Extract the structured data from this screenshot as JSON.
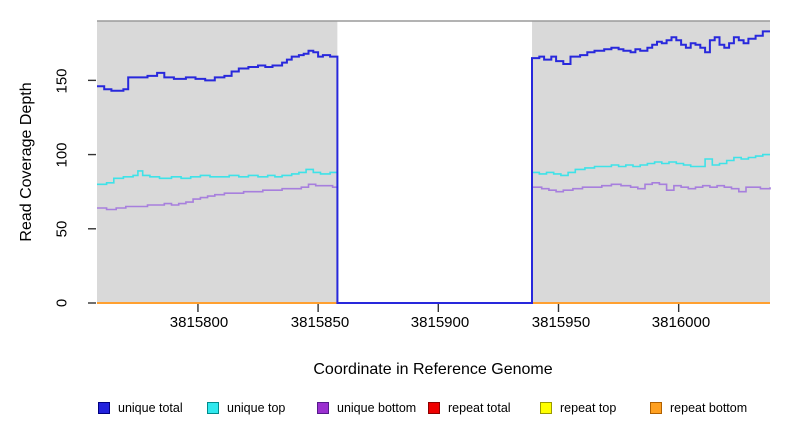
{
  "x_axis": {
    "title": "Coordinate in Reference Genome",
    "tick_labels": [
      "3815800",
      "3815850",
      "3815900",
      "3815950",
      "3816000"
    ]
  },
  "y_axis": {
    "title": "Read Coverage Depth",
    "tick_labels": [
      "0",
      "50",
      "100",
      "150"
    ]
  },
  "legend": {
    "items": [
      {
        "label": "unique total",
        "color": "#2222dd",
        "border": "#000080"
      },
      {
        "label": "unique top",
        "color": "#2fe8ee",
        "border": "#008b8b"
      },
      {
        "label": "unique bottom",
        "color": "#9b30d0",
        "border": "#551a8b"
      },
      {
        "label": "repeat total",
        "color": "#ee0000",
        "border": "#8b0000"
      },
      {
        "label": "repeat top",
        "color": "#ffff00",
        "border": "#9a9a00"
      },
      {
        "label": "repeat bottom",
        "color": "#ffa020",
        "border": "#b06000"
      }
    ]
  },
  "chart_data": {
    "type": "line",
    "style": "step",
    "xlabel": "Coordinate in Reference Genome",
    "ylabel": "Read Coverage Depth",
    "xlim": [
      3815758,
      3816038
    ],
    "ylim": [
      0,
      190
    ],
    "x_ticks": [
      3815800,
      3815850,
      3815900,
      3815950,
      3816000
    ],
    "y_ticks": [
      0,
      50,
      100,
      150
    ],
    "panel_color": "#d9d9d9",
    "panel_top_border": "#9a9a9a",
    "tick_color": "#333333",
    "shaded_regions": [
      [
        3815758,
        3815858
      ],
      [
        3815939,
        3816038
      ]
    ],
    "gap_region": [
      3815858,
      3815939
    ],
    "legend_position": "bottom",
    "grid": false,
    "series": [
      {
        "name": "repeat total",
        "color": "#ee0000",
        "width": 2,
        "points": [
          [
            3815758,
            0
          ],
          [
            3815858,
            0
          ],
          null,
          [
            3815939,
            0
          ],
          [
            3816038,
            0
          ]
        ]
      },
      {
        "name": "repeat top",
        "color": "#ffff00",
        "width": 2,
        "points": [
          [
            3815758,
            0
          ],
          [
            3815858,
            0
          ],
          null,
          [
            3815939,
            0
          ],
          [
            3816038,
            0
          ]
        ]
      },
      {
        "name": "repeat bottom",
        "color": "#ffa030",
        "width": 2,
        "points": [
          [
            3815758,
            0
          ],
          [
            3815858,
            0
          ],
          null,
          [
            3815939,
            0
          ],
          [
            3816038,
            0
          ]
        ]
      },
      {
        "name": "unique top",
        "color": "#3ee2e8",
        "width": 1.6,
        "points": [
          [
            3815758,
            80
          ],
          [
            3815762,
            81
          ],
          [
            3815765,
            84
          ],
          [
            3815769,
            85
          ],
          [
            3815773,
            86
          ],
          [
            3815775,
            89
          ],
          [
            3815777,
            86
          ],
          [
            3815780,
            85
          ],
          [
            3815784,
            84
          ],
          [
            3815789,
            85
          ],
          [
            3815793,
            84
          ],
          [
            3815797,
            85
          ],
          [
            3815801,
            86
          ],
          [
            3815805,
            85
          ],
          [
            3815809,
            85
          ],
          [
            3815813,
            86
          ],
          [
            3815817,
            85
          ],
          [
            3815821,
            86
          ],
          [
            3815825,
            85
          ],
          [
            3815829,
            86
          ],
          [
            3815832,
            85
          ],
          [
            3815835,
            86
          ],
          [
            3815839,
            87
          ],
          [
            3815842,
            88
          ],
          [
            3815845,
            90
          ],
          [
            3815848,
            88
          ],
          [
            3815851,
            87
          ],
          [
            3815855,
            88
          ],
          [
            3815858,
            0
          ],
          [
            3815939,
            88
          ],
          [
            3815942,
            87
          ],
          [
            3815945,
            88
          ],
          [
            3815948,
            87
          ],
          [
            3815951,
            86
          ],
          [
            3815954,
            88
          ],
          [
            3815957,
            90
          ],
          [
            3815961,
            91
          ],
          [
            3815965,
            92
          ],
          [
            3815969,
            92
          ],
          [
            3815972,
            93
          ],
          [
            3815975,
            92
          ],
          [
            3815978,
            93
          ],
          [
            3815981,
            92
          ],
          [
            3815984,
            93
          ],
          [
            3815987,
            94
          ],
          [
            3815990,
            95
          ],
          [
            3815993,
            94
          ],
          [
            3815996,
            95
          ],
          [
            3815999,
            94
          ],
          [
            3816002,
            93
          ],
          [
            3816005,
            92
          ],
          [
            3816008,
            92
          ],
          [
            3816011,
            97
          ],
          [
            3816014,
            93
          ],
          [
            3816017,
            94
          ],
          [
            3816020,
            96
          ],
          [
            3816023,
            98
          ],
          [
            3816026,
            97
          ],
          [
            3816029,
            98
          ],
          [
            3816032,
            99
          ],
          [
            3816035,
            100
          ],
          [
            3816038,
            100
          ]
        ]
      },
      {
        "name": "unique bottom",
        "color": "#a77fdd",
        "width": 1.6,
        "points": [
          [
            3815758,
            64
          ],
          [
            3815762,
            63
          ],
          [
            3815766,
            64
          ],
          [
            3815770,
            65
          ],
          [
            3815775,
            65
          ],
          [
            3815779,
            66
          ],
          [
            3815783,
            66
          ],
          [
            3815786,
            67
          ],
          [
            3815789,
            66
          ],
          [
            3815792,
            67
          ],
          [
            3815795,
            68
          ],
          [
            3815798,
            70
          ],
          [
            3815801,
            71
          ],
          [
            3815804,
            72
          ],
          [
            3815807,
            73
          ],
          [
            3815811,
            74
          ],
          [
            3815815,
            74
          ],
          [
            3815819,
            75
          ],
          [
            3815823,
            75
          ],
          [
            3815827,
            76
          ],
          [
            3815831,
            76
          ],
          [
            3815835,
            77
          ],
          [
            3815839,
            77
          ],
          [
            3815843,
            78
          ],
          [
            3815846,
            80
          ],
          [
            3815849,
            79
          ],
          [
            3815853,
            79
          ],
          [
            3815856,
            78
          ],
          [
            3815858,
            0
          ],
          [
            3815939,
            78
          ],
          [
            3815943,
            77
          ],
          [
            3815946,
            76
          ],
          [
            3815949,
            75
          ],
          [
            3815952,
            76
          ],
          [
            3815956,
            77
          ],
          [
            3815960,
            78
          ],
          [
            3815964,
            78
          ],
          [
            3815968,
            79
          ],
          [
            3815972,
            80
          ],
          [
            3815976,
            79
          ],
          [
            3815980,
            78
          ],
          [
            3815983,
            77
          ],
          [
            3815986,
            80
          ],
          [
            3815989,
            81
          ],
          [
            3815992,
            80
          ],
          [
            3815995,
            76
          ],
          [
            3815998,
            79
          ],
          [
            3816001,
            78
          ],
          [
            3816004,
            77
          ],
          [
            3816007,
            78
          ],
          [
            3816010,
            79
          ],
          [
            3816013,
            78
          ],
          [
            3816016,
            79
          ],
          [
            3816019,
            78
          ],
          [
            3816022,
            77
          ],
          [
            3816025,
            75
          ],
          [
            3816028,
            78
          ],
          [
            3816031,
            78
          ],
          [
            3816034,
            77
          ],
          [
            3816038,
            78
          ]
        ]
      },
      {
        "name": "unique total",
        "color": "#2828dc",
        "width": 2,
        "points": [
          [
            3815758,
            146
          ],
          [
            3815761,
            144
          ],
          [
            3815764,
            143
          ],
          [
            3815769,
            144
          ],
          [
            3815771,
            152
          ],
          [
            3815779,
            153
          ],
          [
            3815783,
            155
          ],
          [
            3815786,
            152
          ],
          [
            3815790,
            151
          ],
          [
            3815795,
            152
          ],
          [
            3815799,
            151
          ],
          [
            3815803,
            150
          ],
          [
            3815807,
            152
          ],
          [
            3815811,
            153
          ],
          [
            3815814,
            156
          ],
          [
            3815817,
            158
          ],
          [
            3815821,
            159
          ],
          [
            3815825,
            160
          ],
          [
            3815828,
            159
          ],
          [
            3815831,
            160
          ],
          [
            3815835,
            162
          ],
          [
            3815837,
            164
          ],
          [
            3815839,
            166
          ],
          [
            3815842,
            167
          ],
          [
            3815844,
            168
          ],
          [
            3815846,
            170
          ],
          [
            3815848,
            169
          ],
          [
            3815850,
            166
          ],
          [
            3815852,
            167
          ],
          [
            3815855,
            166
          ],
          [
            3815858,
            0
          ],
          [
            3815939,
            165
          ],
          [
            3815942,
            166
          ],
          [
            3815944,
            164
          ],
          [
            3815947,
            166
          ],
          [
            3815949,
            163
          ],
          [
            3815952,
            161
          ],
          [
            3815955,
            166
          ],
          [
            3815959,
            167
          ],
          [
            3815962,
            169
          ],
          [
            3815965,
            170
          ],
          [
            3815969,
            171
          ],
          [
            3815972,
            172
          ],
          [
            3815975,
            171
          ],
          [
            3815977,
            170
          ],
          [
            3815980,
            169
          ],
          [
            3815982,
            171
          ],
          [
            3815984,
            170
          ],
          [
            3815987,
            172
          ],
          [
            3815989,
            174
          ],
          [
            3815991,
            176
          ],
          [
            3815993,
            175
          ],
          [
            3815995,
            177
          ],
          [
            3815997,
            179
          ],
          [
            3815999,
            177
          ],
          [
            3816001,
            174
          ],
          [
            3816003,
            172
          ],
          [
            3816005,
            175
          ],
          [
            3816007,
            174
          ],
          [
            3816009,
            172
          ],
          [
            3816011,
            169
          ],
          [
            3816013,
            177
          ],
          [
            3816015,
            179
          ],
          [
            3816017,
            174
          ],
          [
            3816019,
            172
          ],
          [
            3816021,
            175
          ],
          [
            3816023,
            179
          ],
          [
            3816025,
            177
          ],
          [
            3816027,
            175
          ],
          [
            3816029,
            178
          ],
          [
            3816032,
            180
          ],
          [
            3816035,
            183
          ],
          [
            3816038,
            183
          ]
        ]
      }
    ]
  }
}
